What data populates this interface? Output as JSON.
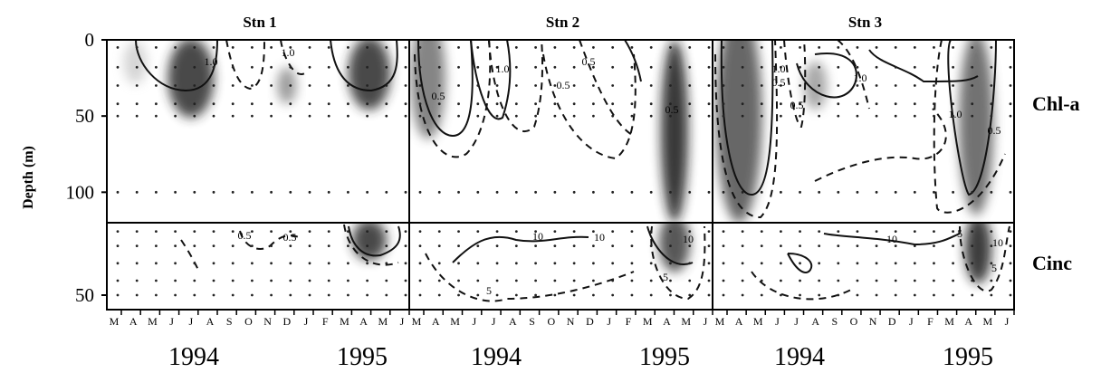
{
  "figure": {
    "stations": [
      {
        "name": "Stn 1",
        "years": [
          "1994",
          "1995"
        ]
      },
      {
        "name": "Stn 2",
        "years": [
          "1994",
          "1995"
        ]
      },
      {
        "name": "Stn 3",
        "years": [
          "1994",
          "1995"
        ]
      }
    ],
    "rows": [
      {
        "name": "Chl-a",
        "ylim": [
          0,
          120
        ],
        "yticks": [
          "0",
          "50",
          "100"
        ]
      },
      {
        "name": "Cinc",
        "ylim": [
          0,
          60
        ],
        "yticks": [
          "50"
        ]
      }
    ],
    "ylabel": "Depth (m)",
    "months": [
      "M",
      "A",
      "M",
      "J",
      "J",
      "A",
      "S",
      "O",
      "N",
      "D",
      "J",
      "F",
      "M",
      "A",
      "M",
      "J"
    ]
  },
  "chart_data": [
    {
      "type": "heatmap",
      "station": "Stn 1",
      "variable": "Chl-a",
      "ylim": [
        0,
        120
      ],
      "contour_labels": [
        "1.0",
        "1.0"
      ],
      "blobs": [
        {
          "month": 4.0,
          "depth": 25,
          "width": 1.2,
          "depth_span": 26,
          "color": "#2b2b2b"
        },
        {
          "month": 13.3,
          "depth": 22,
          "width": 1.1,
          "depth_span": 24,
          "color": "#2b2b2b"
        },
        {
          "month": 9.0,
          "depth": 30,
          "width": 0.5,
          "depth_span": 12,
          "color": "#8c8c8c"
        },
        {
          "month": 1.1,
          "depth": 15,
          "width": 0.6,
          "depth_span": 14,
          "color": "#cfcfcf"
        }
      ]
    },
    {
      "type": "heatmap",
      "station": "Stn 2",
      "variable": "Chl-a",
      "ylim": [
        0,
        120
      ],
      "contour_labels": [
        "0.5",
        "1.0",
        "0.5",
        "0.5",
        "0.5"
      ],
      "blobs": [
        {
          "month": 0.6,
          "depth": 25,
          "width": 0.9,
          "depth_span": 40,
          "color": "#6f6f6f"
        },
        {
          "month": 13.4,
          "depth": 60,
          "width": 0.7,
          "depth_span": 60,
          "color": "#151515"
        }
      ]
    },
    {
      "type": "heatmap",
      "station": "Stn 3",
      "variable": "Chl-a",
      "ylim": [
        0,
        120
      ],
      "contour_labels": [
        "1.0",
        "0.5",
        "0.5",
        "1.0",
        "1.0",
        "0.5"
      ],
      "blobs": [
        {
          "month": 1.0,
          "depth": 50,
          "width": 1.2,
          "depth_span": 70,
          "color": "#4d4d4d"
        },
        {
          "month": 5.0,
          "depth": 30,
          "width": 0.6,
          "depth_span": 16,
          "color": "#9a9a9a"
        },
        {
          "month": 13.4,
          "depth": 55,
          "width": 0.9,
          "depth_span": 60,
          "color": "#5a5a5a"
        }
      ]
    },
    {
      "type": "heatmap",
      "station": "Stn 1",
      "variable": "Cinc",
      "ylim": [
        0,
        60
      ],
      "contour_labels": [
        "0.5",
        "0.5"
      ],
      "blobs": [
        {
          "month": 13.3,
          "depth": 12,
          "width": 0.9,
          "depth_span": 14,
          "color": "#2b2b2b"
        }
      ]
    },
    {
      "type": "heatmap",
      "station": "Stn 2",
      "variable": "Cinc",
      "ylim": [
        0,
        60
      ],
      "contour_labels": [
        "10",
        "10",
        "5",
        "10",
        "5"
      ],
      "blobs": [
        {
          "month": 13.4,
          "depth": 14,
          "width": 0.8,
          "depth_span": 20,
          "color": "#3a3a3a"
        }
      ]
    },
    {
      "type": "heatmap",
      "station": "Stn 3",
      "variable": "Cinc",
      "ylim": [
        0,
        60
      ],
      "contour_labels": [
        "10",
        "5",
        "10",
        "5"
      ],
      "blobs": [
        {
          "month": 13.5,
          "depth": 18,
          "width": 0.7,
          "depth_span": 24,
          "color": "#1e1e1e"
        }
      ]
    }
  ]
}
